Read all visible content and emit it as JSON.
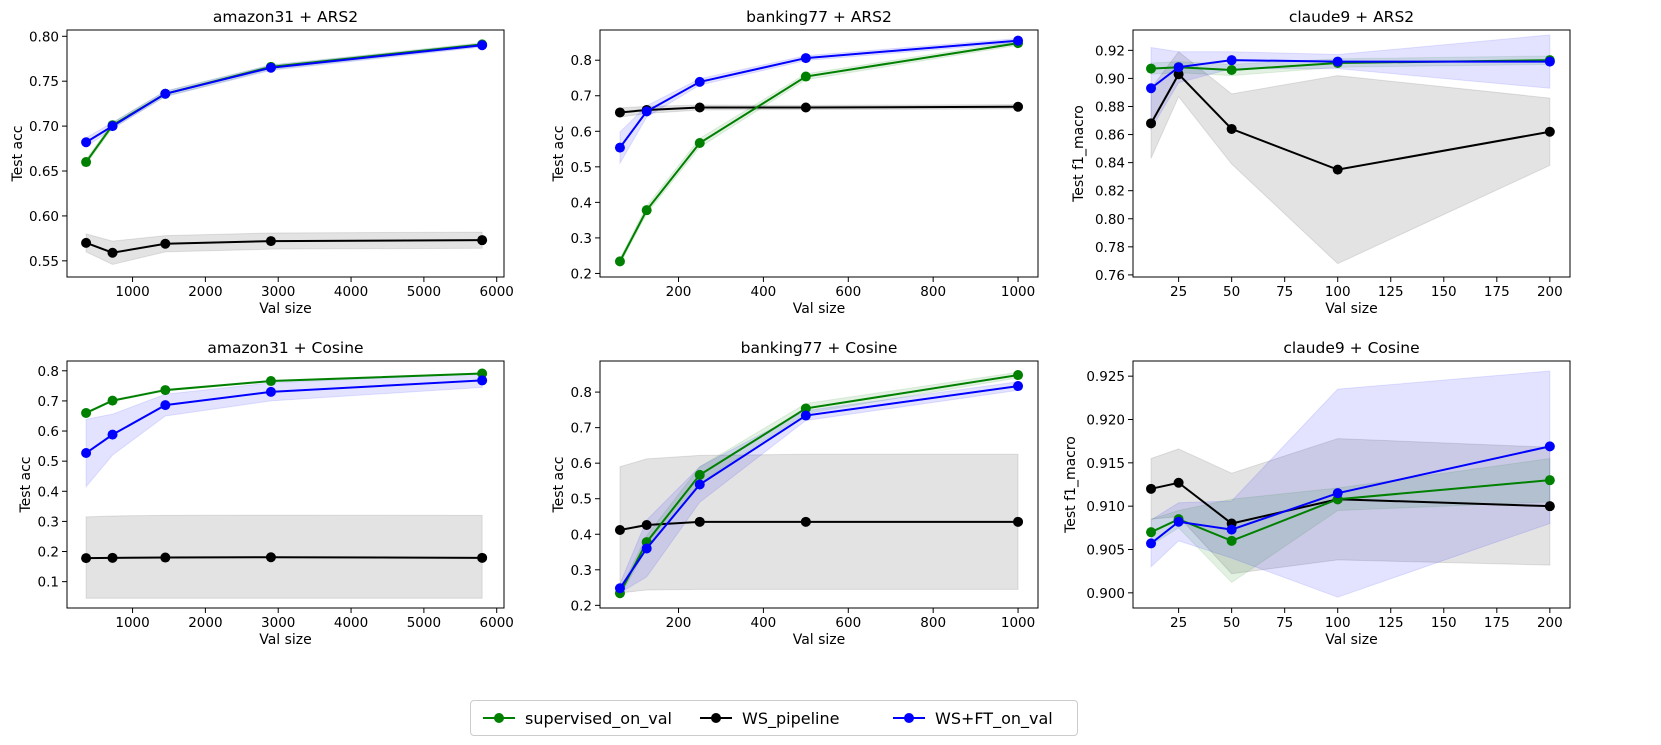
{
  "colors": {
    "supervised_on_val": "#008000",
    "WS_pipeline": "#000000",
    "WS+FT_on_val": "#0000ff"
  },
  "legend": {
    "items": [
      {
        "key": "supervised_on_val",
        "label": "supervised_on_val"
      },
      {
        "key": "WS_pipeline",
        "label": "WS_pipeline"
      },
      {
        "key": "WS+FT_on_val",
        "label": "WS+FT_on_val"
      }
    ]
  },
  "chart_data": [
    {
      "type": "line",
      "title": "amazon31 + ARS2",
      "xlabel": "Val size",
      "ylabel": "Test acc",
      "xlim": [
        100,
        6100
      ],
      "ylim": [
        0.532,
        0.807
      ],
      "xticks": [
        1000,
        2000,
        3000,
        4000,
        5000,
        6000
      ],
      "yticks": [
        0.55,
        0.6,
        0.65,
        0.7,
        0.75,
        0.8
      ],
      "ytick_labels": [
        "0.55",
        "0.60",
        "0.65",
        "0.70",
        "0.75",
        "0.80"
      ],
      "x": [
        362,
        725,
        1450,
        2900,
        5800
      ],
      "series": [
        {
          "name": "supervised_on_val",
          "values": [
            0.66,
            0.701,
            0.736,
            0.766,
            0.791
          ],
          "lower": [
            0.657,
            0.698,
            0.733,
            0.763,
            0.789
          ],
          "upper": [
            0.663,
            0.704,
            0.739,
            0.768,
            0.793
          ]
        },
        {
          "name": "WS_pipeline",
          "values": [
            0.57,
            0.559,
            0.569,
            0.572,
            0.573
          ],
          "lower": [
            0.56,
            0.546,
            0.56,
            0.563,
            0.564
          ],
          "upper": [
            0.58,
            0.572,
            0.578,
            0.581,
            0.582
          ]
        },
        {
          "name": "WS+FT_on_val",
          "values": [
            0.682,
            0.7,
            0.736,
            0.765,
            0.79
          ],
          "lower": [
            0.677,
            0.697,
            0.733,
            0.762,
            0.788
          ],
          "upper": [
            0.687,
            0.704,
            0.739,
            0.768,
            0.792
          ]
        }
      ]
    },
    {
      "type": "line",
      "title": "banking77 + ARS2",
      "xlabel": "Val size",
      "ylabel": "Test acc",
      "xlim": [
        15,
        1047
      ],
      "ylim": [
        0.19,
        0.885
      ],
      "xticks": [
        200,
        400,
        600,
        800,
        1000
      ],
      "yticks": [
        0.2,
        0.3,
        0.4,
        0.5,
        0.6,
        0.7,
        0.8
      ],
      "ytick_labels": [
        "0.2",
        "0.3",
        "0.4",
        "0.5",
        "0.6",
        "0.7",
        "0.8"
      ],
      "x": [
        62,
        125,
        250,
        500,
        1000
      ],
      "series": [
        {
          "name": "supervised_on_val",
          "values": [
            0.234,
            0.378,
            0.567,
            0.754,
            0.848
          ],
          "lower": [
            0.226,
            0.368,
            0.555,
            0.745,
            0.842
          ],
          "upper": [
            0.242,
            0.39,
            0.58,
            0.762,
            0.854
          ]
        },
        {
          "name": "WS_pipeline",
          "values": [
            0.653,
            0.66,
            0.667,
            0.667,
            0.669
          ],
          "lower": [
            0.64,
            0.65,
            0.66,
            0.661,
            0.663
          ],
          "upper": [
            0.666,
            0.67,
            0.674,
            0.673,
            0.675
          ]
        },
        {
          "name": "WS+FT_on_val",
          "values": [
            0.554,
            0.656,
            0.739,
            0.806,
            0.855
          ],
          "lower": [
            0.51,
            0.64,
            0.73,
            0.799,
            0.849
          ],
          "upper": [
            0.598,
            0.672,
            0.748,
            0.813,
            0.861
          ]
        }
      ]
    },
    {
      "type": "line",
      "title": "claude9 + ARS2",
      "xlabel": "Val size",
      "ylabel": "Test f1_macro",
      "xlim": [
        3.5,
        209.5
      ],
      "ylim": [
        0.7585,
        0.9345
      ],
      "xticks": [
        25,
        50,
        75,
        100,
        125,
        150,
        175,
        200
      ],
      "yticks": [
        0.76,
        0.78,
        0.8,
        0.82,
        0.84,
        0.86,
        0.88,
        0.9,
        0.92
      ],
      "ytick_labels": [
        "0.76",
        "0.78",
        "0.80",
        "0.82",
        "0.84",
        "0.86",
        "0.88",
        "0.90",
        "0.92"
      ],
      "x": [
        12,
        25,
        50,
        100,
        200
      ],
      "series": [
        {
          "name": "supervised_on_val",
          "values": [
            0.907,
            0.908,
            0.906,
            0.911,
            0.913
          ],
          "lower": [
            0.903,
            0.904,
            0.902,
            0.908,
            0.91
          ],
          "upper": [
            0.911,
            0.912,
            0.91,
            0.914,
            0.916
          ]
        },
        {
          "name": "WS_pipeline",
          "values": [
            0.868,
            0.903,
            0.864,
            0.835,
            0.862
          ],
          "lower": [
            0.843,
            0.887,
            0.839,
            0.768,
            0.838
          ],
          "upper": [
            0.893,
            0.919,
            0.889,
            0.902,
            0.886
          ]
        },
        {
          "name": "WS+FT_on_val",
          "values": [
            0.893,
            0.908,
            0.913,
            0.912,
            0.912
          ],
          "lower": [
            0.864,
            0.897,
            0.907,
            0.907,
            0.893
          ],
          "upper": [
            0.922,
            0.919,
            0.919,
            0.917,
            0.931
          ]
        }
      ]
    },
    {
      "type": "line",
      "title": "amazon31 + Cosine",
      "xlabel": "Val size",
      "ylabel": "Test acc",
      "xlim": [
        100,
        6100
      ],
      "ylim": [
        0.0125,
        0.8325
      ],
      "xticks": [
        1000,
        2000,
        3000,
        4000,
        5000,
        6000
      ],
      "yticks": [
        0.1,
        0.2,
        0.3,
        0.4,
        0.5,
        0.6,
        0.7,
        0.8
      ],
      "ytick_labels": [
        "0.1",
        "0.2",
        "0.3",
        "0.4",
        "0.5",
        "0.6",
        "0.7",
        "0.8"
      ],
      "x": [
        362,
        725,
        1450,
        2900,
        5800
      ],
      "series": [
        {
          "name": "supervised_on_val",
          "values": [
            0.66,
            0.701,
            0.736,
            0.766,
            0.791
          ],
          "lower": [
            0.657,
            0.698,
            0.733,
            0.763,
            0.789
          ],
          "upper": [
            0.663,
            0.704,
            0.739,
            0.768,
            0.793
          ]
        },
        {
          "name": "WS_pipeline",
          "values": [
            0.178,
            0.179,
            0.18,
            0.181,
            0.179
          ],
          "lower": [
            0.045,
            0.045,
            0.045,
            0.045,
            0.045
          ],
          "upper": [
            0.315,
            0.318,
            0.32,
            0.321,
            0.32
          ]
        },
        {
          "name": "WS+FT_on_val",
          "values": [
            0.527,
            0.588,
            0.686,
            0.73,
            0.768
          ],
          "lower": [
            0.415,
            0.52,
            0.65,
            0.7,
            0.745
          ],
          "upper": [
            0.639,
            0.656,
            0.722,
            0.76,
            0.791
          ]
        }
      ]
    },
    {
      "type": "line",
      "title": "banking77 + Cosine",
      "xlabel": "Val size",
      "ylabel": "Test acc",
      "xlim": [
        15,
        1047
      ],
      "ylim": [
        0.1925,
        0.8875
      ],
      "xticks": [
        200,
        400,
        600,
        800,
        1000
      ],
      "yticks": [
        0.2,
        0.3,
        0.4,
        0.5,
        0.6,
        0.7,
        0.8
      ],
      "ytick_labels": [
        "0.2",
        "0.3",
        "0.4",
        "0.5",
        "0.6",
        "0.7",
        "0.8"
      ],
      "x": [
        62,
        125,
        250,
        500,
        1000
      ],
      "series": [
        {
          "name": "supervised_on_val",
          "values": [
            0.234,
            0.378,
            0.567,
            0.754,
            0.848
          ],
          "lower": [
            0.226,
            0.36,
            0.545,
            0.74,
            0.84
          ],
          "upper": [
            0.242,
            0.396,
            0.59,
            0.768,
            0.856
          ]
        },
        {
          "name": "WS_pipeline",
          "values": [
            0.412,
            0.426,
            0.435,
            0.435,
            0.435
          ],
          "lower": [
            0.235,
            0.243,
            0.245,
            0.245,
            0.245
          ],
          "upper": [
            0.59,
            0.612,
            0.622,
            0.625,
            0.625
          ]
        },
        {
          "name": "WS+FT_on_val",
          "values": [
            0.248,
            0.36,
            0.54,
            0.734,
            0.817
          ],
          "lower": [
            0.235,
            0.28,
            0.49,
            0.72,
            0.805
          ],
          "upper": [
            0.261,
            0.44,
            0.59,
            0.748,
            0.829
          ]
        }
      ]
    },
    {
      "type": "line",
      "title": "claude9 + Cosine",
      "xlabel": "Val size",
      "ylabel": "Test f1_macro",
      "xlim": [
        3.5,
        209.5
      ],
      "ylim": [
        0.89825,
        0.92675
      ],
      "xticks": [
        25,
        50,
        75,
        100,
        125,
        150,
        175,
        200
      ],
      "yticks": [
        0.9,
        0.905,
        0.91,
        0.915,
        0.92,
        0.925
      ],
      "ytick_labels": [
        "0.900",
        "0.905",
        "0.910",
        "0.915",
        "0.920",
        "0.925"
      ],
      "x": [
        12,
        25,
        50,
        100,
        200
      ],
      "series": [
        {
          "name": "supervised_on_val",
          "values": [
            0.907,
            0.9085,
            0.906,
            0.9108,
            0.913
          ],
          "lower": [
            0.9055,
            0.9075,
            0.9012,
            0.9095,
            0.9105
          ],
          "upper": [
            0.9085,
            0.9095,
            0.9108,
            0.9121,
            0.9155
          ]
        },
        {
          "name": "WS_pipeline",
          "values": [
            0.912,
            0.9127,
            0.908,
            0.9108,
            0.91
          ],
          "lower": [
            0.9085,
            0.9088,
            0.9022,
            0.9038,
            0.9032
          ],
          "upper": [
            0.9155,
            0.9166,
            0.9138,
            0.9178,
            0.9168
          ]
        },
        {
          "name": "WS+FT_on_val",
          "values": [
            0.9057,
            0.9082,
            0.9073,
            0.9115,
            0.9169
          ],
          "lower": [
            0.903,
            0.906,
            0.904,
            0.8995,
            0.908
          ],
          "upper": [
            0.9084,
            0.9104,
            0.9106,
            0.9235,
            0.9256
          ]
        }
      ]
    }
  ]
}
